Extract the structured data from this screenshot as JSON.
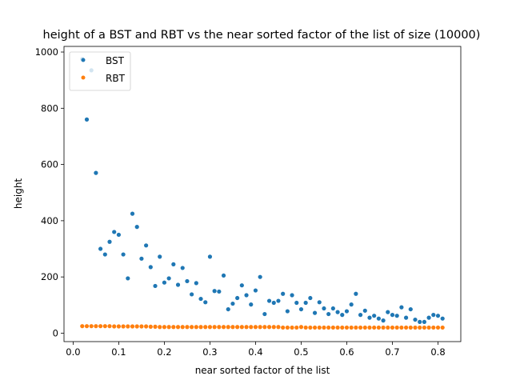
{
  "chart_data": {
    "type": "scatter",
    "title": "height of a BST and RBT vs the near sorted factor of the list of size (10000)",
    "xlabel": "near sorted factor of the list",
    "ylabel": "height",
    "xlim": [
      -0.02,
      0.85
    ],
    "ylim": [
      -30,
      1020
    ],
    "xticks": [
      0.0,
      0.1,
      0.2,
      0.3,
      0.4,
      0.5,
      0.6,
      0.7,
      0.8
    ],
    "xtick_labels": [
      "0.0",
      "0.1",
      "0.2",
      "0.3",
      "0.4",
      "0.5",
      "0.6",
      "0.7",
      "0.8"
    ],
    "yticks": [
      0,
      200,
      400,
      600,
      800,
      1000
    ],
    "ytick_labels": [
      "0",
      "200",
      "400",
      "600",
      "800",
      "1000"
    ],
    "legend_position": "top-left",
    "grid": false,
    "x": [
      0.02,
      0.03,
      0.04,
      0.05,
      0.06,
      0.07,
      0.08,
      0.09,
      0.1,
      0.11,
      0.12,
      0.13,
      0.14,
      0.15,
      0.16,
      0.17,
      0.18,
      0.19,
      0.2,
      0.21,
      0.22,
      0.23,
      0.24,
      0.25,
      0.26,
      0.27,
      0.28,
      0.29,
      0.3,
      0.31,
      0.32,
      0.33,
      0.34,
      0.35,
      0.36,
      0.37,
      0.38,
      0.39,
      0.4,
      0.41,
      0.42,
      0.43,
      0.44,
      0.45,
      0.46,
      0.47,
      0.48,
      0.49,
      0.5,
      0.51,
      0.52,
      0.53,
      0.54,
      0.55,
      0.56,
      0.57,
      0.58,
      0.59,
      0.6,
      0.61,
      0.62,
      0.63,
      0.64,
      0.65,
      0.66,
      0.67,
      0.68,
      0.69,
      0.7,
      0.71,
      0.72,
      0.73,
      0.74,
      0.75,
      0.76,
      0.77,
      0.78,
      0.79,
      0.8,
      0.81
    ],
    "series": [
      {
        "name": "BST",
        "color": "#1f77b4",
        "values": [
          975,
          760,
          935,
          570,
          300,
          280,
          325,
          360,
          350,
          280,
          195,
          425,
          378,
          265,
          312,
          235,
          168,
          272,
          180,
          195,
          245,
          172,
          232,
          185,
          138,
          178,
          122,
          110,
          272,
          150,
          148,
          205,
          85,
          105,
          125,
          170,
          135,
          102,
          152,
          200,
          68,
          115,
          108,
          115,
          140,
          78,
          135,
          108,
          85,
          108,
          125,
          72,
          110,
          88,
          68,
          88,
          75,
          65,
          78,
          102,
          140,
          65,
          80,
          55,
          62,
          52,
          45,
          75,
          65,
          62,
          92,
          55,
          85,
          48,
          40,
          40,
          55,
          65,
          62,
          52
        ]
      },
      {
        "name": "RBT",
        "color": "#ff7f0e",
        "values": [
          25,
          25,
          25,
          25,
          25,
          25,
          25,
          24,
          24,
          24,
          24,
          24,
          24,
          24,
          24,
          23,
          23,
          22,
          22,
          22,
          22,
          22,
          22,
          22,
          22,
          22,
          22,
          22,
          22,
          22,
          22,
          22,
          22,
          22,
          22,
          22,
          22,
          22,
          22,
          22,
          22,
          22,
          22,
          22,
          20,
          20,
          20,
          20,
          22,
          20,
          20,
          20,
          20,
          20,
          20,
          20,
          20,
          20,
          20,
          20,
          20,
          20,
          20,
          20,
          20,
          20,
          20,
          20,
          20,
          20,
          20,
          20,
          20,
          20,
          20,
          20,
          20,
          20,
          20,
          20
        ]
      }
    ]
  }
}
